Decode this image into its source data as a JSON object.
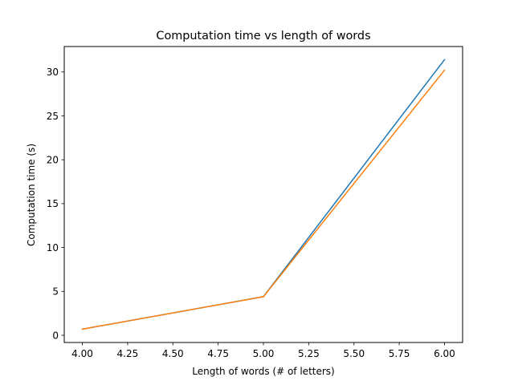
{
  "chart_data": {
    "type": "line",
    "title": "Computation time vs length of words",
    "xlabel": "Length of words (# of letters)",
    "ylabel": "Computation time (s)",
    "xlim": [
      3.9,
      6.1
    ],
    "ylim": [
      -0.82,
      32.9
    ],
    "xticks": [
      4.0,
      4.25,
      4.5,
      4.75,
      5.0,
      5.25,
      5.5,
      5.75,
      6.0
    ],
    "xtick_labels": [
      "4.00",
      "4.25",
      "4.50",
      "4.75",
      "5.00",
      "5.25",
      "5.50",
      "5.75",
      "6.00"
    ],
    "yticks": [
      0,
      5,
      10,
      15,
      20,
      25,
      30
    ],
    "ytick_labels": [
      "0",
      "5",
      "10",
      "15",
      "20",
      "25",
      "30"
    ],
    "grid": false,
    "legend": "none",
    "x": [
      4,
      5,
      6
    ],
    "series": [
      {
        "values": [
          0.7,
          4.4,
          31.4
        ],
        "color": "#1f77b4"
      },
      {
        "values": [
          0.7,
          4.4,
          30.2
        ],
        "color": "#ff7f0e"
      }
    ]
  }
}
